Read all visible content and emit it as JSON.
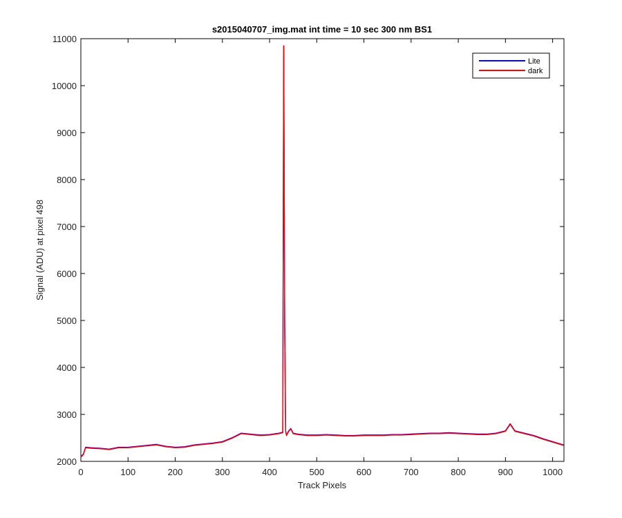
{
  "chart_data": {
    "type": "line",
    "title": "s2015040707_img.mat int time = 10 sec  300 nm BS1",
    "xlabel": "Track Pixels",
    "ylabel": "Signal (ADU) at pixel 498",
    "xlim": [
      0,
      1024
    ],
    "ylim": [
      2000,
      11000
    ],
    "xticks": [
      0,
      100,
      200,
      300,
      400,
      500,
      600,
      700,
      800,
      900,
      1000
    ],
    "yticks": [
      2000,
      3000,
      4000,
      5000,
      6000,
      7000,
      8000,
      9000,
      10000,
      11000
    ],
    "grid": false,
    "legend_position": "top-right",
    "series": [
      {
        "name": "Lite",
        "color": "#0000ff",
        "x": [
          0,
          5,
          10,
          20,
          40,
          60,
          80,
          100,
          120,
          140,
          160,
          180,
          200,
          220,
          240,
          260,
          280,
          300,
          320,
          340,
          360,
          380,
          400,
          420,
          428,
          430,
          432,
          434,
          436,
          440,
          445,
          450,
          460,
          480,
          500,
          520,
          540,
          560,
          580,
          600,
          620,
          640,
          660,
          680,
          700,
          720,
          740,
          760,
          780,
          800,
          820,
          840,
          860,
          880,
          900,
          910,
          920,
          940,
          960,
          980,
          1000,
          1023
        ],
        "y": [
          2100,
          2150,
          2300,
          2290,
          2280,
          2260,
          2300,
          2300,
          2320,
          2340,
          2360,
          2320,
          2300,
          2310,
          2350,
          2370,
          2390,
          2420,
          2500,
          2600,
          2580,
          2560,
          2570,
          2600,
          2620,
          10850,
          5000,
          2650,
          2560,
          2640,
          2700,
          2600,
          2580,
          2560,
          2560,
          2570,
          2560,
          2550,
          2550,
          2560,
          2560,
          2560,
          2570,
          2570,
          2580,
          2590,
          2600,
          2600,
          2610,
          2600,
          2590,
          2580,
          2580,
          2600,
          2650,
          2800,
          2650,
          2600,
          2550,
          2480,
          2420,
          2350
        ]
      },
      {
        "name": "dark",
        "color": "#ff0000",
        "x": [
          0,
          5,
          10,
          20,
          40,
          60,
          80,
          100,
          120,
          140,
          160,
          180,
          200,
          220,
          240,
          260,
          280,
          300,
          320,
          340,
          360,
          380,
          400,
          420,
          428,
          430,
          432,
          434,
          436,
          440,
          445,
          450,
          460,
          480,
          500,
          520,
          540,
          560,
          580,
          600,
          620,
          640,
          660,
          680,
          700,
          720,
          740,
          760,
          780,
          800,
          820,
          840,
          860,
          880,
          900,
          910,
          920,
          940,
          960,
          980,
          1000,
          1023
        ],
        "y": [
          2090,
          2140,
          2290,
          2280,
          2270,
          2250,
          2290,
          2290,
          2310,
          2330,
          2350,
          2310,
          2290,
          2300,
          2340,
          2360,
          2380,
          2410,
          2490,
          2590,
          2570,
          2550,
          2560,
          2590,
          2610,
          10840,
          4990,
          2640,
          2550,
          2630,
          2690,
          2590,
          2570,
          2550,
          2550,
          2560,
          2550,
          2540,
          2540,
          2550,
          2550,
          2550,
          2560,
          2560,
          2570,
          2580,
          2590,
          2590,
          2600,
          2590,
          2580,
          2570,
          2570,
          2590,
          2640,
          2790,
          2640,
          2590,
          2540,
          2470,
          2410,
          2340
        ]
      }
    ]
  }
}
